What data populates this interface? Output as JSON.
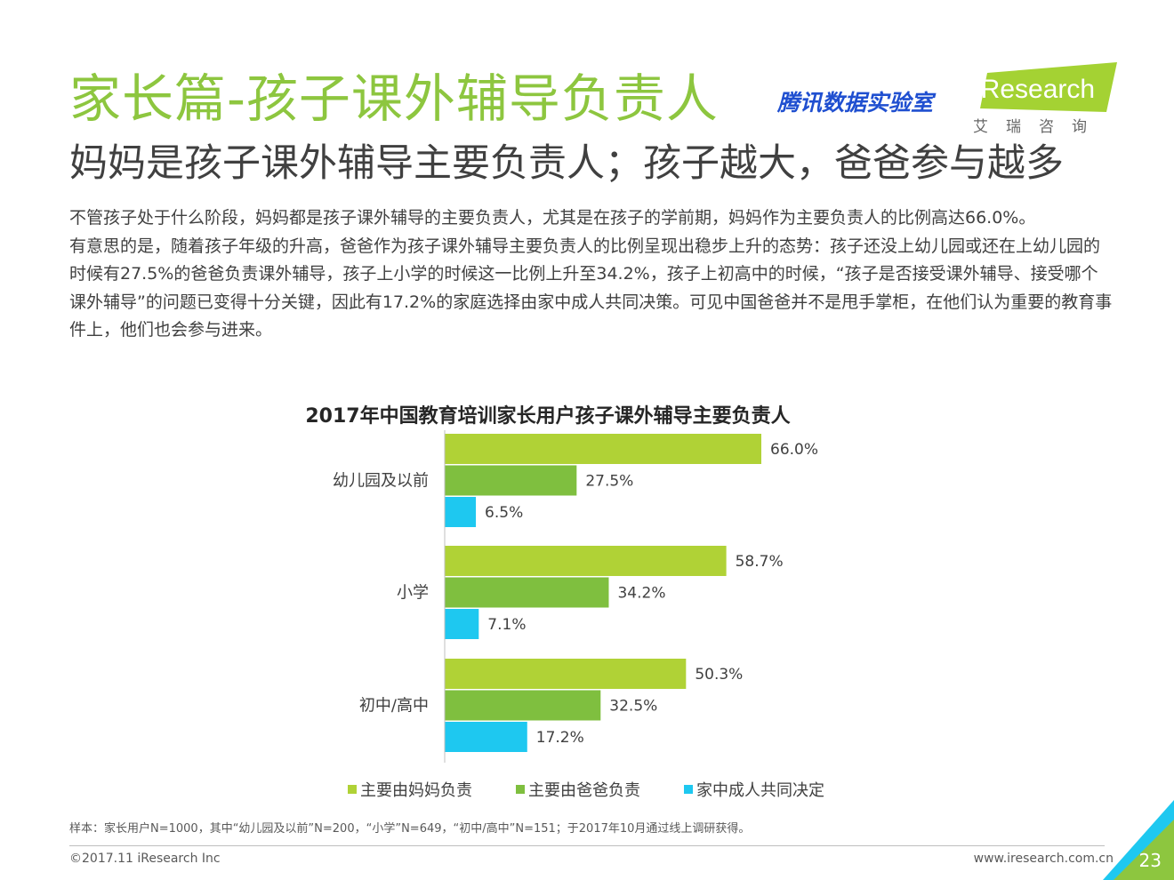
{
  "header": {
    "title": "家长篇-孩子课外辅导负责人",
    "subtitle": "妈妈是孩子课外辅导主要负责人；孩子越大，爸爸参与越多",
    "partner_brand": "腾讯数据实验室",
    "ir_logo_text": "iResearch",
    "ir_logo_sub": "艾瑞咨询"
  },
  "body": {
    "paragraph_1": "不管孩子处于什么阶段，妈妈都是孩子课外辅导的主要负责人，尤其是在孩子的学前期，妈妈作为主要负责人的比例高达66.0%。",
    "paragraph_2": "有意思的是，随着孩子年级的升高，爸爸作为孩子课外辅导主要负责人的比例呈现出稳步上升的态势：孩子还没上幼儿园或还在上幼儿园的时候有27.5%的爸爸负责课外辅导，孩子上小学的时候这一比例上升至34.2%，孩子上初高中的时候，“孩子是否接受课外辅导、接受哪个课外辅导”的问题已变得十分关键，因此有17.2%的家庭选择由家中成人共同决策。可见中国爸爸并不是甩手掌柜，在他们认为重要的教育事件上，他们也会参与进来。"
  },
  "chart_data": {
    "type": "bar",
    "orientation": "horizontal",
    "title": "2017年中国教育培训家长用户孩子课外辅导主要负责人",
    "categories": [
      "幼儿园及以前",
      "小学",
      "初中/高中"
    ],
    "series": [
      {
        "name": "主要由妈妈负责",
        "values": [
          66.0,
          58.7,
          50.3
        ],
        "color": "#b0d236"
      },
      {
        "name": "主要由爸爸负责",
        "values": [
          27.5,
          34.2,
          32.5
        ],
        "color": "#7fbf3f"
      },
      {
        "name": "家中成人共同决定",
        "values": [
          6.5,
          7.1,
          17.2
        ],
        "color": "#1ec8f0"
      }
    ],
    "value_suffix": "%",
    "xlim": [
      0,
      70
    ],
    "grid": false,
    "legend_position": "bottom"
  },
  "footer": {
    "note": "样本：家长用户N=1000，其中“幼儿园及以前”N=200，“小学”N=649，“初中/高中”N=151；于2017年10月通过线上调研获得。",
    "copyright": "©2017.11 iResearch Inc",
    "website": "www.iresearch.com.cn",
    "page_number": "23"
  },
  "colors": {
    "title_green": "#8dc63f",
    "brand_blue": "#1f4fd0",
    "corner_green": "#8dc63f",
    "corner_blue": "#1ec8f0"
  }
}
